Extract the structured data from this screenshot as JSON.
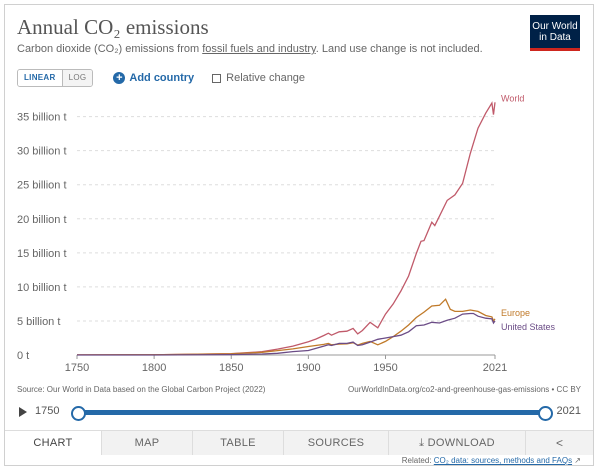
{
  "header": {
    "title": "Annual CO₂ emissions",
    "subtitle_pre": "Carbon dioxide (CO₂) emissions from ",
    "subtitle_link": "fossil fuels and industry",
    "subtitle_post": ". Land use change is not included.",
    "logo_line1": "Our World",
    "logo_line2": "in Data"
  },
  "controls": {
    "linear": "LINEAR",
    "log": "LOG",
    "add_country": "Add country",
    "relative_change": "Relative change"
  },
  "chart_data": {
    "type": "line",
    "title": "Annual CO₂ emissions",
    "ylim": [
      0,
      37000000000
    ],
    "xlim": [
      1750,
      2021
    ],
    "y_ticks": [
      {
        "v": 0,
        "label": "0 t"
      },
      {
        "v": 5000000000,
        "label": "5 billion t"
      },
      {
        "v": 10000000000,
        "label": "10 billion t"
      },
      {
        "v": 15000000000,
        "label": "15 billion t"
      },
      {
        "v": 20000000000,
        "label": "20 billion t"
      },
      {
        "v": 25000000000,
        "label": "25 billion t"
      },
      {
        "v": 30000000000,
        "label": "30 billion t"
      },
      {
        "v": 35000000000,
        "label": "35 billion t"
      }
    ],
    "x_ticks": [
      "1750",
      "1800",
      "1850",
      "1900",
      "1950",
      "2021"
    ],
    "grid": true,
    "series": [
      {
        "name": "World",
        "color": "#c05a6a",
        "x": [
          1750,
          1800,
          1850,
          1870,
          1880,
          1890,
          1900,
          1905,
          1910,
          1913,
          1915,
          1920,
          1925,
          1929,
          1932,
          1935,
          1940,
          1945,
          1950,
          1955,
          1960,
          1965,
          1970,
          1973,
          1975,
          1980,
          1982,
          1985,
          1990,
          1995,
          2000,
          2005,
          2010,
          2015,
          2019,
          2020,
          2021
        ],
        "y": [
          9400000,
          27000000,
          197000000,
          490000000,
          860000000,
          1300000000,
          1950000000,
          2350000000,
          2860000000,
          3200000000,
          2900000000,
          3400000000,
          3500000000,
          3900000000,
          3100000000,
          3600000000,
          4800000000,
          4000000000,
          6000000000,
          7500000000,
          9400000000,
          11600000000,
          14900000000,
          16700000000,
          16800000000,
          19500000000,
          19000000000,
          20400000000,
          22700000000,
          23500000000,
          25200000000,
          29600000000,
          33300000000,
          35500000000,
          37000000000,
          35300000000,
          37100000000
        ]
      },
      {
        "name": "Europe",
        "color": "#c07a2a",
        "x": [
          1750,
          1800,
          1850,
          1870,
          1880,
          1890,
          1900,
          1910,
          1913,
          1915,
          1920,
          1925,
          1929,
          1932,
          1935,
          1940,
          1945,
          1950,
          1955,
          1960,
          1965,
          1970,
          1975,
          1980,
          1985,
          1989,
          1992,
          1995,
          2000,
          2005,
          2010,
          2015,
          2019,
          2020,
          2021
        ],
        "y": [
          9000000,
          25000000,
          180000000,
          400000000,
          650000000,
          900000000,
          1250000000,
          1550000000,
          1700000000,
          1500000000,
          1600000000,
          1650000000,
          1800000000,
          1450000000,
          1700000000,
          2000000000,
          1500000000,
          2000000000,
          2700000000,
          3500000000,
          4400000000,
          5500000000,
          6300000000,
          7200000000,
          7300000000,
          8200000000,
          6700000000,
          6400000000,
          6400000000,
          6600000000,
          6400000000,
          5800000000,
          5600000000,
          5000000000,
          5300000000
        ]
      },
      {
        "name": "United States",
        "color": "#6b4c86",
        "x": [
          1750,
          1800,
          1850,
          1870,
          1880,
          1890,
          1900,
          1910,
          1913,
          1915,
          1920,
          1925,
          1929,
          1932,
          1935,
          1940,
          1945,
          1950,
          1955,
          1960,
          1965,
          1970,
          1975,
          1980,
          1985,
          1990,
          1995,
          2000,
          2005,
          2007,
          2010,
          2015,
          2019,
          2020,
          2021
        ],
        "y": [
          0,
          300000,
          54000000,
          150000000,
          250000000,
          500000000,
          660000000,
          1300000000,
          1500000000,
          1400000000,
          1700000000,
          1700000000,
          1900000000,
          1400000000,
          1500000000,
          1900000000,
          2300000000,
          2500000000,
          2700000000,
          2900000000,
          3400000000,
          4300000000,
          4400000000,
          4800000000,
          4700000000,
          5100000000,
          5400000000,
          6000000000,
          6100000000,
          6100000000,
          5700000000,
          5400000000,
          5300000000,
          4700000000,
          5000000000
        ]
      }
    ]
  },
  "footer": {
    "source": "Source: Our World in Data based on the Global Carbon Project (2022)",
    "url": "OurWorldInData.org/co2-and-greenhouse-gas-emissions • CC BY",
    "timeline_start": "1750",
    "timeline_end": "2021"
  },
  "tabs": [
    "CHART",
    "MAP",
    "TABLE",
    "SOURCES",
    "DOWNLOAD"
  ],
  "related": {
    "prefix": "Related: ",
    "link": "CO₂ data: sources, methods and FAQs",
    "icon": "external-link-icon"
  }
}
